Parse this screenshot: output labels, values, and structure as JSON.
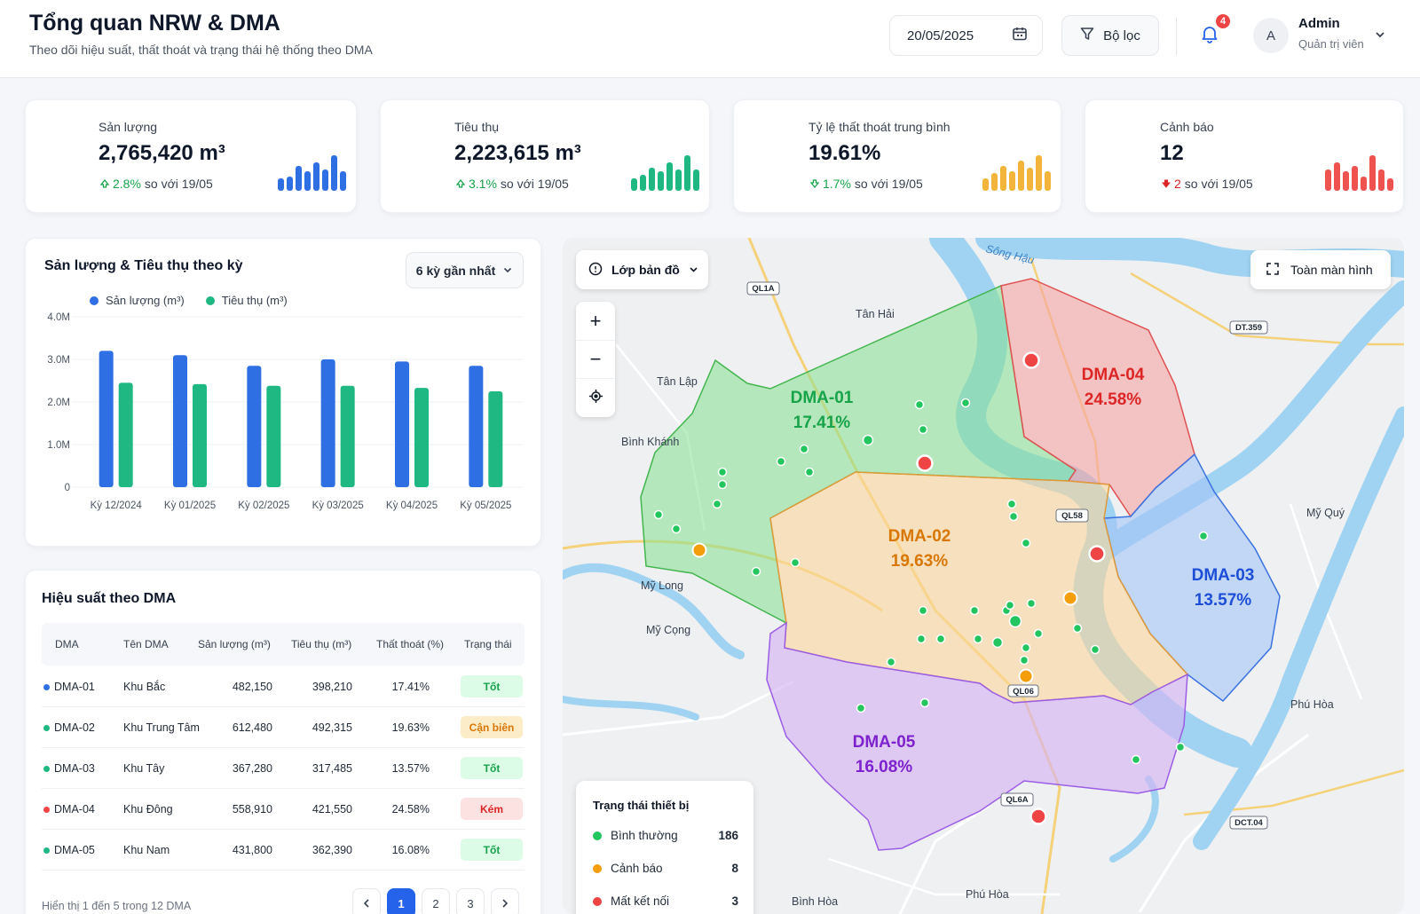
{
  "header": {
    "title": "Tổng quan NRW & DMA",
    "subtitle": "Theo dõi hiệu suất, thất thoát và trạng thái hệ thống theo DMA",
    "date": "20/05/2025",
    "filter_label": "Bộ lọc",
    "notification_count": "4",
    "user_initial": "A",
    "user_name": "Admin",
    "user_role": "Quản trị viên"
  },
  "kpis": [
    {
      "label": "Sản lượng",
      "value": "2,765,420 m³",
      "delta": "2.8%",
      "delta_suffix": "so với 19/05",
      "delta_color": "#16a34a",
      "bar_color": "#2f6fe4",
      "bars": [
        0.35,
        0.4,
        0.7,
        0.55,
        0.8,
        0.6,
        1.0,
        0.55
      ]
    },
    {
      "label": "Tiêu thụ",
      "value": "2,223,615 m³",
      "delta": "3.1%",
      "delta_suffix": "so với 19/05",
      "delta_color": "#16a34a",
      "bar_color": "#1fb883",
      "bars": [
        0.35,
        0.45,
        0.65,
        0.55,
        0.8,
        0.6,
        1.0,
        0.6
      ]
    },
    {
      "label": "Tỷ lệ thất thoát trung bình",
      "value": "19.61%",
      "delta": "1.7%",
      "delta_suffix": "so với 19/05",
      "delta_color": "#16a34a",
      "bar_color": "#f2b43a",
      "bars": [
        0.35,
        0.5,
        0.7,
        0.55,
        0.85,
        0.65,
        1.0,
        0.55
      ]
    },
    {
      "label": "Cảnh báo",
      "value": "12",
      "delta": "2",
      "delta_suffix": "so với 19/05",
      "delta_color": "#dc2626",
      "bar_color": "#ef5350",
      "bars": [
        0.6,
        0.8,
        0.55,
        0.7,
        0.4,
        1.0,
        0.6,
        0.35
      ]
    }
  ],
  "chart": {
    "title": "Sản lượng & Tiêu thụ theo kỳ",
    "period_select": "6 kỳ gần nhất"
  },
  "chart_data": {
    "type": "bar",
    "categories": [
      "Kỳ 12/2024",
      "Kỳ 01/2025",
      "Kỳ 02/2025",
      "Kỳ 03/2025",
      "Kỳ 04/2025",
      "Kỳ 05/2025"
    ],
    "series": [
      {
        "name": "Sản lượng (m³)",
        "color": "#2f6fe4",
        "values": [
          3.2,
          3.1,
          2.85,
          3.0,
          2.95,
          2.85
        ]
      },
      {
        "name": "Tiêu thụ (m³)",
        "color": "#1fb883",
        "values": [
          2.45,
          2.42,
          2.38,
          2.38,
          2.33,
          2.25
        ]
      }
    ],
    "yticks": [
      "0",
      "1.0M",
      "2.0M",
      "3.0M",
      "4.0M"
    ],
    "ylim": [
      0,
      4.0
    ],
    "grid": true,
    "legend": "top-left"
  },
  "table": {
    "title": "Hiệu suất theo DMA",
    "headers": [
      "DMA",
      "Tên DMA",
      "Sản lượng (m³)",
      "Tiêu thụ (m³)",
      "Thất thoát (%)",
      "Trạng thái"
    ],
    "rows": [
      {
        "dma": "DMA-01",
        "name": "Khu Bắc",
        "prod": "482,150",
        "cons": "398,210",
        "loss": "17.41%",
        "status": "Tốt",
        "dot": "#2f6fe4",
        "s_bg": "#dcfce7",
        "s_fg": "#16a34a"
      },
      {
        "dma": "DMA-02",
        "name": "Khu Trung Tâm",
        "prod": "612,480",
        "cons": "492,315",
        "loss": "19.63%",
        "status": "Cận biên",
        "dot": "#1fb883",
        "s_bg": "#fdecc8",
        "s_fg": "#d97706"
      },
      {
        "dma": "DMA-03",
        "name": "Khu Tây",
        "prod": "367,280",
        "cons": "317,485",
        "loss": "13.57%",
        "status": "Tốt",
        "dot": "#1fb883",
        "s_bg": "#dcfce7",
        "s_fg": "#16a34a"
      },
      {
        "dma": "DMA-04",
        "name": "Khu Đông",
        "prod": "558,910",
        "cons": "421,550",
        "loss": "24.58%",
        "status": "Kém",
        "dot": "#ef4444",
        "s_bg": "#fde2e2",
        "s_fg": "#dc2626"
      },
      {
        "dma": "DMA-05",
        "name": "Khu Nam",
        "prod": "431,800",
        "cons": "362,390",
        "loss": "16.08%",
        "status": "Tốt",
        "dot": "#1fb883",
        "s_bg": "#dcfce7",
        "s_fg": "#16a34a"
      }
    ],
    "footer": "Hiển thị 1 đến 5 trong 12 DMA",
    "pages": [
      "1",
      "2",
      "3"
    ]
  },
  "map": {
    "layer_button": "Lớp bản đồ",
    "fullscreen_button": "Toàn màn hình",
    "river_label": "Sông Hậu",
    "roads": [
      "QL1A",
      "DT.359",
      "QL58",
      "QL06",
      "QL6A",
      "DCT.04"
    ],
    "places": [
      "Tân Hải",
      "Tân Lập",
      "Bình Khánh",
      "Mỹ Long",
      "Mỹ Cọng",
      "Mỹ Quý",
      "Phú Hòa",
      "Phú Hòa",
      "Bình Hòa"
    ],
    "zones": [
      {
        "name": "DMA-01",
        "pct": "17.41%",
        "color": "#16a34a"
      },
      {
        "name": "DMA-02",
        "pct": "19.63%",
        "color": "#d97706"
      },
      {
        "name": "DMA-03",
        "pct": "13.57%",
        "color": "#1d4ed8"
      },
      {
        "name": "DMA-04",
        "pct": "24.58%",
        "color": "#dc2626"
      },
      {
        "name": "DMA-05",
        "pct": "16.08%",
        "color": "#7e22ce"
      }
    ],
    "device_status": {
      "title": "Trạng thái thiết bị",
      "items": [
        {
          "label": "Bình thường",
          "count": "186",
          "color": "#22c55e"
        },
        {
          "label": "Cảnh báo",
          "count": "8",
          "color": "#f59e0b"
        },
        {
          "label": "Mất kết nối",
          "count": "3",
          "color": "#ef4444"
        }
      ]
    }
  }
}
